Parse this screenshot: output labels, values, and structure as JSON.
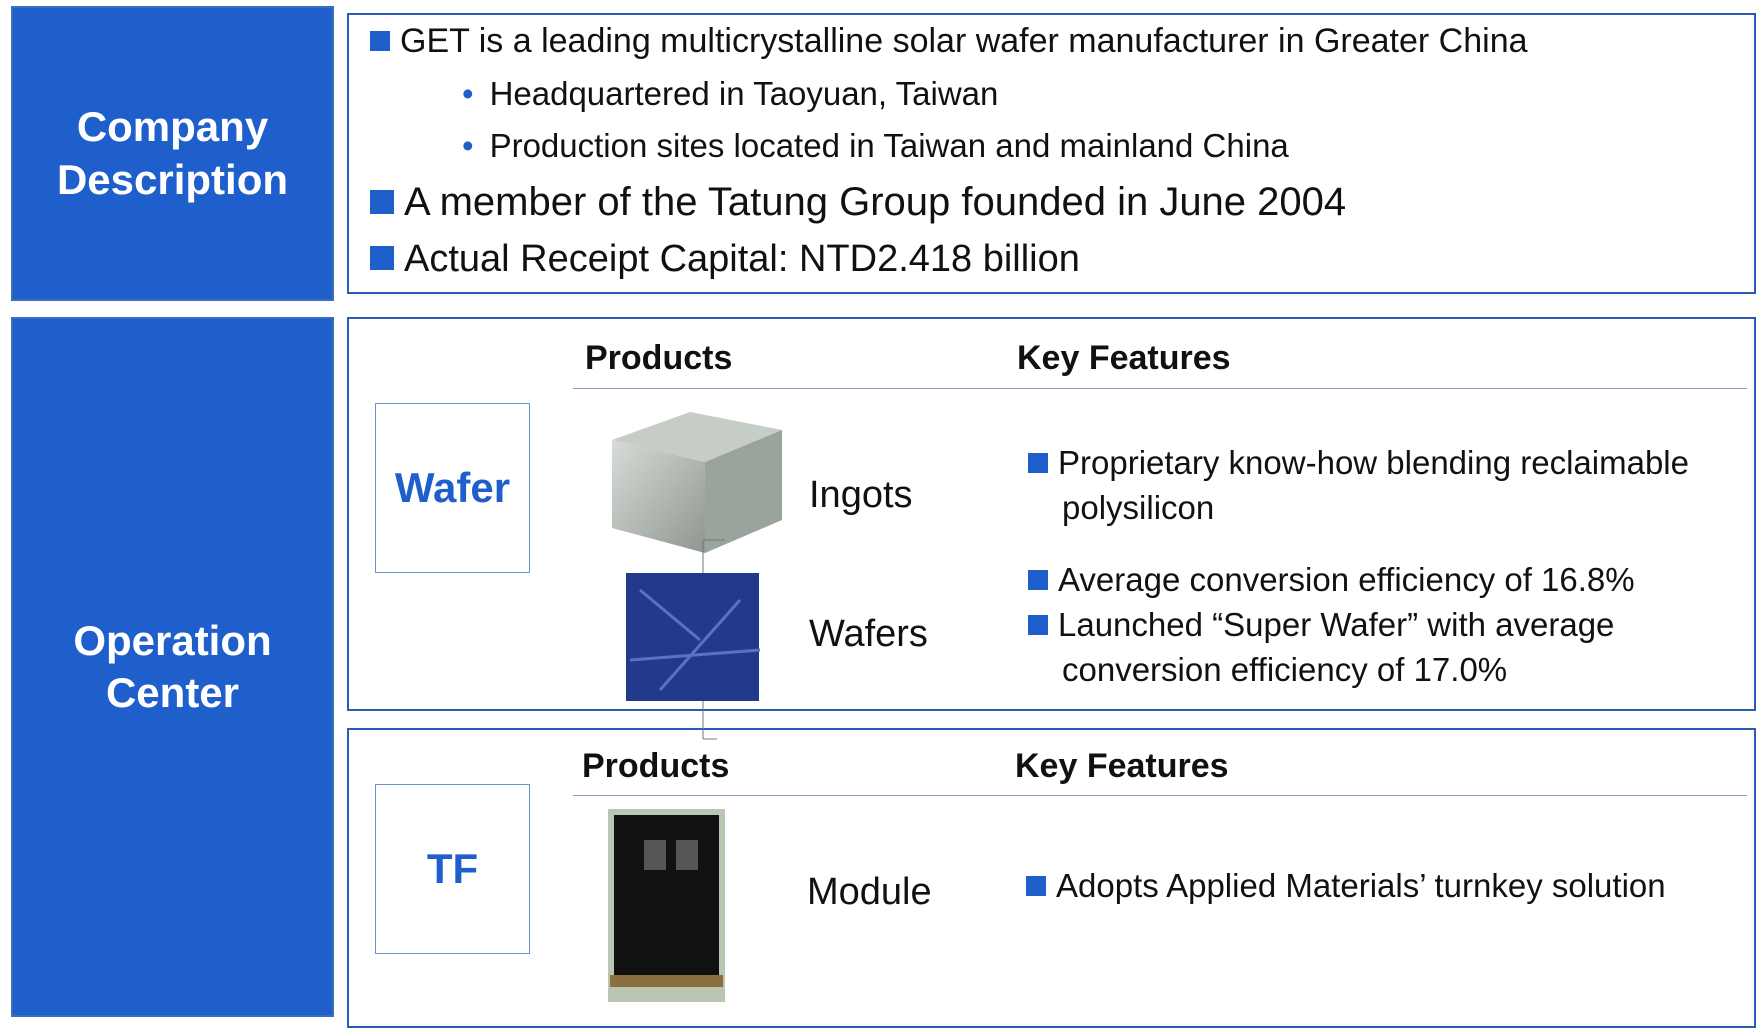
{
  "company_description": {
    "label": "Company Description",
    "bullets": [
      {
        "text": "GET is a leading multicrystalline solar wafer manufacturer in Greater China",
        "sub": [
          "Headquartered in Taoyuan, Taiwan",
          "Production sites located in Taiwan and mainland China"
        ]
      },
      {
        "text": "A member of the Tatung Group founded in June 2004"
      },
      {
        "text": "Actual Receipt Capital: NTD2.418 billion"
      }
    ]
  },
  "operation_center": {
    "label": "Operation Center",
    "wafer": {
      "label": "Wafer",
      "products_header": "Products",
      "features_header": "Key Features",
      "products": [
        "Ingots",
        "Wafers"
      ],
      "features": [
        "Proprietary know-how blending reclaimable polysilicon",
        "Average conversion efficiency of 16.8%",
        "Launched “Super Wafer” with average conversion efficiency of 17.0%"
      ]
    },
    "tf": {
      "label": "TF",
      "products_header": "Products",
      "features_header": "Key Features",
      "products": [
        "Module"
      ],
      "features": [
        "Adopts Applied Materials’ turnkey solution"
      ]
    }
  }
}
